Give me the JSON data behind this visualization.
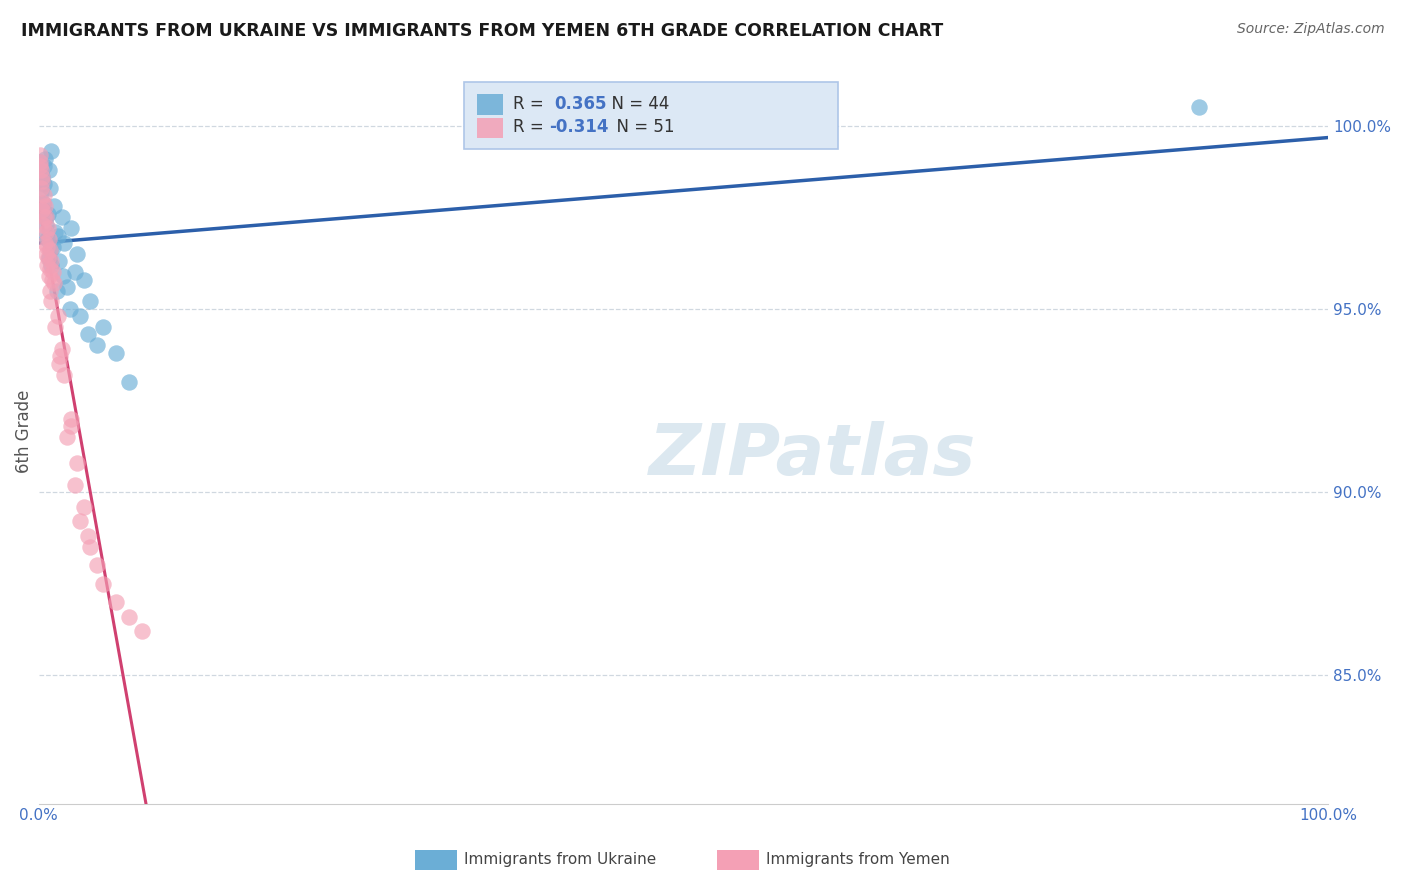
{
  "title": "IMMIGRANTS FROM UKRAINE VS IMMIGRANTS FROM YEMEN 6TH GRADE CORRELATION CHART",
  "source": "Source: ZipAtlas.com",
  "ylabel": "6th Grade",
  "ukraine_color": "#6baed6",
  "yemen_color": "#f4a0b5",
  "ukraine_R": 0.365,
  "ukraine_N": 44,
  "yemen_R": -0.314,
  "yemen_N": 51,
  "x_min": 0.0,
  "x_max": 100.0,
  "y_min": 81.5,
  "y_max": 101.8,
  "watermark_text": "ZIPatlas",
  "ukraine_x": [
    0.3,
    0.5,
    0.8,
    1.0,
    1.2,
    0.2,
    0.4,
    0.6,
    0.9,
    1.5,
    1.8,
    2.0,
    2.5,
    3.0,
    3.5,
    4.0,
    5.0,
    6.0,
    7.0,
    0.15,
    0.25,
    0.35,
    0.45,
    0.55,
    0.65,
    0.75,
    0.85,
    1.1,
    1.3,
    1.6,
    1.9,
    2.2,
    2.8,
    3.2,
    4.5,
    0.18,
    0.38,
    0.58,
    0.78,
    0.98,
    1.4,
    2.4,
    3.8,
    90.0
  ],
  "ukraine_y": [
    98.5,
    99.1,
    98.8,
    99.3,
    97.8,
    98.2,
    98.9,
    97.5,
    98.3,
    97.0,
    97.5,
    96.8,
    97.2,
    96.5,
    95.8,
    95.2,
    94.5,
    93.8,
    93.0,
    99.0,
    98.6,
    97.9,
    98.4,
    97.3,
    96.9,
    97.6,
    96.6,
    96.7,
    97.1,
    96.3,
    95.9,
    95.6,
    96.0,
    94.8,
    94.0,
    98.7,
    97.7,
    97.0,
    96.4,
    96.2,
    95.5,
    95.0,
    94.3,
    100.5
  ],
  "yemen_x": [
    0.1,
    0.2,
    0.3,
    0.4,
    0.5,
    0.6,
    0.7,
    0.8,
    0.9,
    1.0,
    1.1,
    1.2,
    1.5,
    1.8,
    2.0,
    2.5,
    3.0,
    3.5,
    4.0,
    4.5,
    5.0,
    6.0,
    7.0,
    8.0,
    0.15,
    0.25,
    0.35,
    0.45,
    0.55,
    0.65,
    0.75,
    0.85,
    1.05,
    1.3,
    1.6,
    2.2,
    2.8,
    3.2,
    3.8,
    0.08,
    0.18,
    0.28,
    0.38,
    0.48,
    0.58,
    0.68,
    0.78,
    0.88,
    0.95,
    1.7,
    2.5
  ],
  "yemen_y": [
    99.2,
    98.8,
    98.5,
    98.1,
    97.8,
    97.5,
    97.2,
    96.9,
    96.6,
    96.3,
    96.0,
    95.7,
    94.8,
    93.9,
    93.2,
    92.0,
    90.8,
    89.6,
    88.5,
    88.0,
    87.5,
    87.0,
    86.6,
    86.2,
    99.0,
    98.6,
    97.9,
    97.5,
    97.1,
    96.7,
    96.4,
    96.1,
    95.8,
    94.5,
    93.5,
    91.5,
    90.2,
    89.2,
    88.8,
    98.9,
    98.3,
    97.7,
    97.3,
    96.8,
    96.5,
    96.2,
    95.9,
    95.5,
    95.2,
    93.7,
    91.8
  ],
  "legend_bg": "#dce8f5",
  "legend_border": "#aec6e8",
  "grid_color": "#d0d8e0",
  "tick_color": "#4472c4",
  "title_color": "#1a1a1a",
  "ylabel_color": "#555555",
  "blue_line_color": "#2c5faa",
  "pink_line_color": "#d04070",
  "watermark_color": "#dce8f0"
}
